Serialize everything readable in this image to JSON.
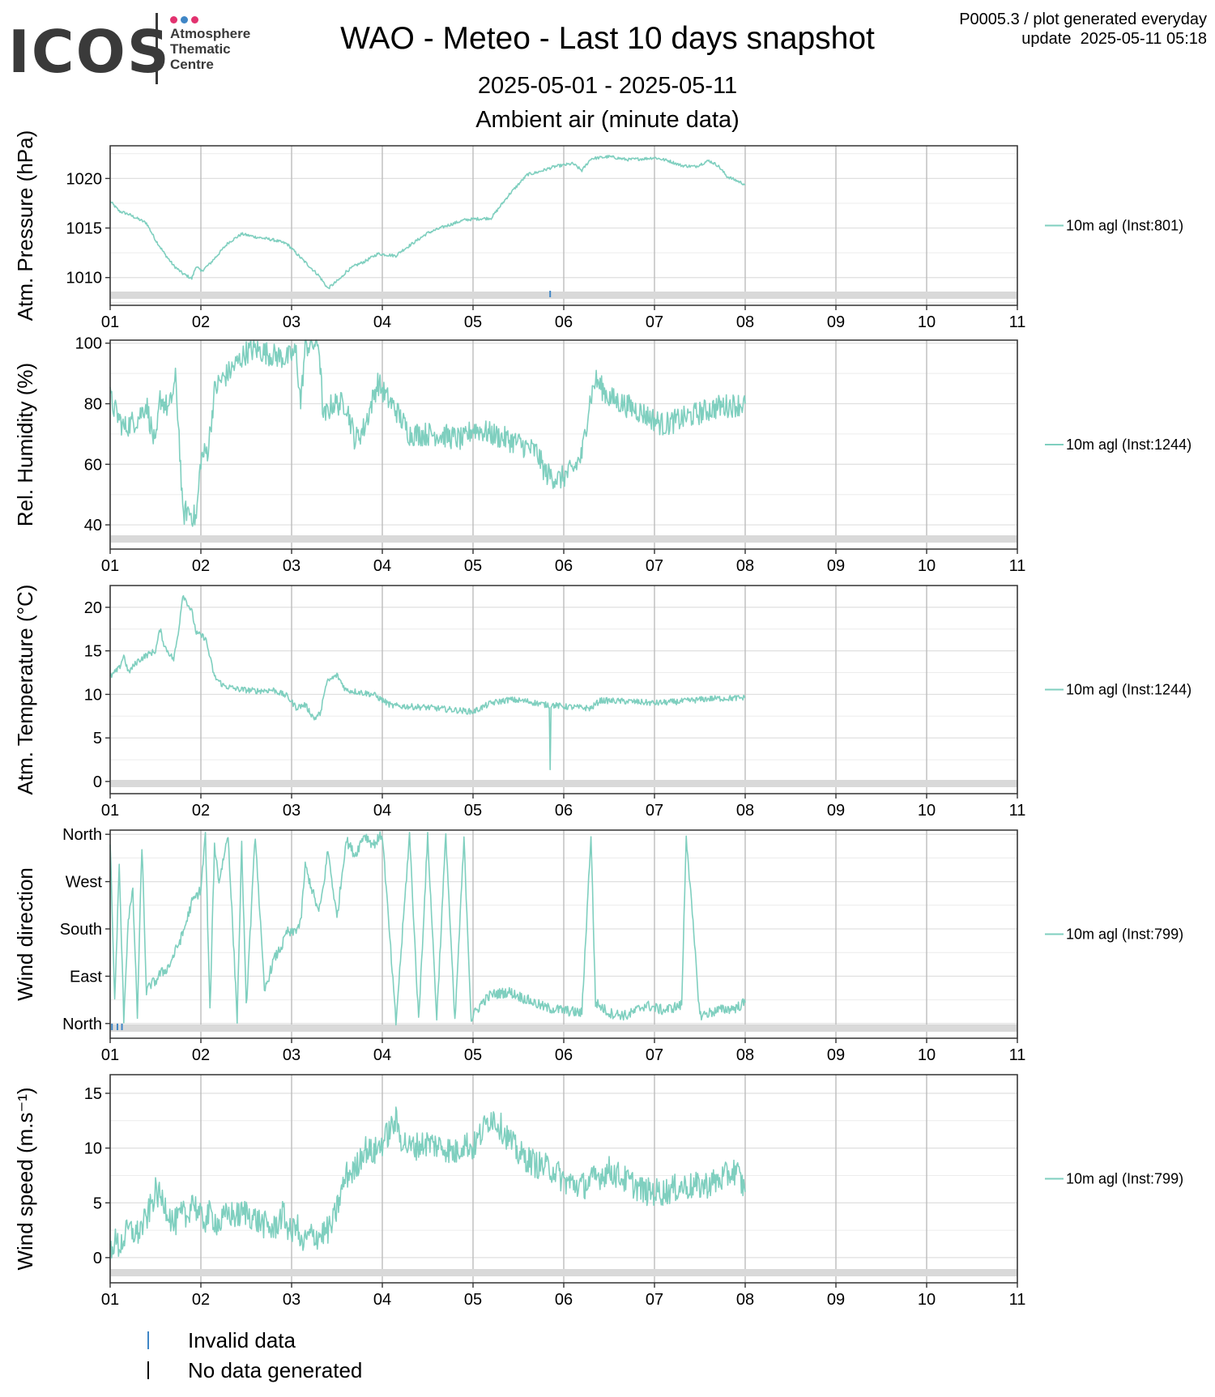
{
  "logo": {
    "text": "ICOS",
    "subtitle": "Atmosphere\nThematic\nCentre",
    "dot_colors": [
      "#e2326f",
      "#3f86c6",
      "#e2326f"
    ]
  },
  "header": {
    "title": "WAO - Meteo - Last 10 days snapshot",
    "subtitle": "2025-05-01 - 2025-05-11",
    "subtitle2": "Ambient air (minute data)",
    "meta_line1": "P0005.3 / plot generated everyday",
    "meta_line2": "update  2025-05-11 05:18"
  },
  "colors": {
    "series": "#7fcfbf",
    "grid_major": "#bdbdbd",
    "grid_minor": "#ececec",
    "nodata_band": "#d9d9d9",
    "invalid": "#3f86c6",
    "nodata": "#000000"
  },
  "legend_bottom": [
    {
      "label": "Invalid data",
      "color": "#3f86c6"
    },
    {
      "label": "No data generated",
      "color": "#000000"
    }
  ],
  "chart_data": [
    {
      "type": "line",
      "id": "pressure",
      "ylabel": "Atm. Pressure (hPa)",
      "series_name": "10m agl (Inst:801)",
      "xlim": [
        1,
        11
      ],
      "ylim": [
        1007.2,
        1023.3
      ],
      "yticks": [
        1010,
        1015,
        1020
      ],
      "ytick_labels": [
        "1010",
        "1015",
        "1020"
      ],
      "xticks": [
        1,
        2,
        3,
        4,
        5,
        6,
        7,
        8,
        9,
        10,
        11
      ],
      "xtick_labels": [
        "01",
        "02",
        "03",
        "04",
        "05",
        "06",
        "07",
        "08",
        "09",
        "10",
        "11"
      ],
      "noise": 0.15,
      "x": [
        1.0,
        1.1,
        1.2,
        1.4,
        1.5,
        1.6,
        1.7,
        1.8,
        1.9,
        1.95,
        2.0,
        2.1,
        2.3,
        2.45,
        2.6,
        2.8,
        2.95,
        3.1,
        3.3,
        3.4,
        3.55,
        3.6,
        3.7,
        3.8,
        3.95,
        4.15,
        4.2,
        4.5,
        4.7,
        4.9,
        5.0,
        5.2,
        5.4,
        5.6,
        5.7,
        5.9,
        6.1,
        6.2,
        6.3,
        6.5,
        6.7,
        6.9,
        7.0,
        7.15,
        7.3,
        7.45,
        7.6,
        7.7,
        7.8,
        8.0
      ],
      "y": [
        1017.7,
        1016.7,
        1016.4,
        1015.5,
        1013.8,
        1012.4,
        1011.2,
        1010.4,
        1009.9,
        1011.2,
        1010.6,
        1011.4,
        1013.5,
        1014.4,
        1014.1,
        1013.8,
        1013.4,
        1012.0,
        1010.2,
        1008.9,
        1010.0,
        1010.6,
        1011.2,
        1011.6,
        1012.4,
        1012.2,
        1012.6,
        1014.5,
        1015.2,
        1015.8,
        1015.9,
        1016.0,
        1018.4,
        1020.4,
        1020.6,
        1021.2,
        1021.5,
        1020.8,
        1022.0,
        1022.2,
        1021.9,
        1022.0,
        1022.1,
        1021.8,
        1021.3,
        1021.2,
        1021.8,
        1021.3,
        1020.2,
        1019.4
      ],
      "invalid_marks": [
        5.85
      ]
    },
    {
      "type": "line",
      "id": "humidity",
      "ylabel": "Rel. Humidity (%)",
      "series_name": "10m agl (Inst:1244)",
      "xlim": [
        1,
        11
      ],
      "ylim": [
        32,
        101
      ],
      "yticks": [
        40,
        60,
        80,
        100
      ],
      "ytick_labels": [
        "40",
        "60",
        "80",
        "100"
      ],
      "xticks": [
        1,
        2,
        3,
        4,
        5,
        6,
        7,
        8,
        9,
        10,
        11
      ],
      "xtick_labels": [
        "01",
        "02",
        "03",
        "04",
        "05",
        "06",
        "07",
        "08",
        "09",
        "10",
        "11"
      ],
      "noise": 4,
      "x": [
        1.0,
        1.05,
        1.15,
        1.3,
        1.4,
        1.5,
        1.55,
        1.65,
        1.72,
        1.76,
        1.8,
        1.85,
        1.95,
        2.0,
        2.08,
        2.15,
        2.2,
        2.3,
        2.5,
        2.6,
        2.8,
        2.95,
        3.05,
        3.1,
        3.15,
        3.3,
        3.33,
        3.35,
        3.45,
        3.6,
        3.7,
        3.8,
        3.9,
        3.95,
        4.05,
        4.15,
        4.3,
        4.6,
        4.9,
        5.0,
        5.2,
        5.5,
        5.7,
        5.8,
        5.95,
        6.1,
        6.2,
        6.28,
        6.35,
        6.5,
        6.8,
        7.1,
        7.3,
        7.5,
        7.7,
        8.0
      ],
      "y": [
        82,
        78,
        72,
        75,
        80,
        65,
        82,
        78,
        88,
        70,
        43,
        45,
        42,
        62,
        65,
        84,
        87,
        90,
        97,
        98,
        96,
        95,
        97,
        80,
        99,
        100,
        85,
        75,
        80,
        80,
        68,
        72,
        82,
        87,
        82,
        78,
        70,
        70,
        68,
        72,
        70,
        67,
        64,
        57,
        55,
        58,
        63,
        80,
        88,
        82,
        78,
        73,
        75,
        77,
        79,
        80
      ],
      "invalid_marks": []
    },
    {
      "type": "line",
      "id": "temperature",
      "ylabel": "Atm. Temperature (°C)",
      "series_name": "10m agl (Inst:1244)",
      "xlim": [
        1,
        11
      ],
      "ylim": [
        -1.4,
        22.5
      ],
      "yticks": [
        0,
        5,
        10,
        15,
        20
      ],
      "ytick_labels": [
        "0",
        "5",
        "10",
        "15",
        "20"
      ],
      "xticks": [
        1,
        2,
        3,
        4,
        5,
        6,
        7,
        8,
        9,
        10,
        11
      ],
      "xtick_labels": [
        "01",
        "02",
        "03",
        "04",
        "05",
        "06",
        "07",
        "08",
        "09",
        "10",
        "11"
      ],
      "noise": 0.35,
      "x": [
        1.0,
        1.1,
        1.15,
        1.2,
        1.3,
        1.4,
        1.5,
        1.55,
        1.6,
        1.7,
        1.75,
        1.8,
        1.85,
        1.9,
        1.95,
        2.05,
        2.15,
        2.25,
        2.4,
        2.6,
        2.8,
        2.95,
        3.05,
        3.15,
        3.25,
        3.33,
        3.35,
        3.4,
        3.5,
        3.6,
        3.9,
        4.1,
        4.5,
        4.8,
        5.0,
        5.2,
        5.4,
        5.6,
        5.8,
        5.84,
        5.85,
        5.86,
        6.0,
        6.3,
        6.4,
        6.7,
        7.0,
        7.3,
        7.6,
        8.0
      ],
      "y": [
        12.0,
        13.0,
        14.5,
        12.5,
        13.8,
        14.5,
        15.0,
        17.5,
        15.5,
        14.0,
        17.0,
        21.5,
        20.5,
        19.5,
        17.0,
        16.5,
        12.0,
        11.0,
        10.6,
        10.4,
        10.5,
        9.8,
        8.5,
        8.8,
        7.2,
        8.0,
        10.0,
        11.5,
        12.2,
        10.5,
        10.0,
        8.7,
        8.5,
        8.2,
        8.0,
        9.0,
        9.4,
        9.2,
        8.8,
        8.8,
        1.6,
        8.8,
        8.6,
        8.4,
        9.3,
        9.2,
        9.0,
        9.2,
        9.5,
        9.6
      ],
      "invalid_marks": []
    },
    {
      "type": "line",
      "id": "wind-direction",
      "ylabel": "Wind direction",
      "series_name": "10m agl (Inst:799)",
      "xlim": [
        1,
        11
      ],
      "ylim": [
        -28,
        368
      ],
      "yticks": [
        0,
        90,
        180,
        270,
        360
      ],
      "ytick_labels": [
        "North",
        "East",
        "South",
        "West",
        "North"
      ],
      "xticks": [
        1,
        2,
        3,
        4,
        5,
        6,
        7,
        8,
        9,
        10,
        11
      ],
      "xtick_labels": [
        "01",
        "02",
        "03",
        "04",
        "05",
        "06",
        "07",
        "08",
        "09",
        "10",
        "11"
      ],
      "noise": 10,
      "x": [
        1.0,
        1.05,
        1.1,
        1.15,
        1.2,
        1.25,
        1.3,
        1.35,
        1.4,
        1.45,
        1.5,
        1.55,
        1.6,
        1.65,
        1.7,
        1.75,
        1.8,
        1.85,
        1.9,
        2.0,
        2.05,
        2.1,
        2.15,
        2.2,
        2.3,
        2.4,
        2.45,
        2.5,
        2.6,
        2.7,
        2.8,
        2.9,
        2.95,
        3.0,
        3.1,
        3.15,
        3.25,
        3.3,
        3.35,
        3.4,
        3.5,
        3.6,
        3.7,
        3.8,
        3.9,
        4.0,
        4.15,
        4.3,
        4.4,
        4.5,
        4.6,
        4.7,
        4.8,
        4.9,
        4.98,
        5.0,
        5.1,
        5.2,
        5.4,
        5.6,
        5.8,
        6.0,
        6.2,
        6.3,
        6.35,
        6.5,
        6.7,
        6.9,
        7.1,
        7.3,
        7.35,
        7.5,
        7.7,
        7.9,
        8.0
      ],
      "y": [
        350,
        40,
        300,
        10,
        200,
        250,
        15,
        340,
        60,
        75,
        80,
        95,
        100,
        110,
        130,
        150,
        170,
        200,
        230,
        255,
        360,
        20,
        340,
        270,
        360,
        10,
        340,
        30,
        360,
        60,
        120,
        150,
        175,
        170,
        190,
        300,
        240,
        210,
        260,
        330,
        200,
        350,
        320,
        360,
        340,
        360,
        0,
        360,
        5,
        355,
        10,
        360,
        0,
        350,
        5,
        15,
        40,
        55,
        60,
        45,
        30,
        25,
        20,
        360,
        40,
        20,
        15,
        35,
        25,
        35,
        360,
        15,
        25,
        30,
        40
      ],
      "invalid_marks": [
        1.02,
        1.08,
        1.13
      ]
    },
    {
      "type": "line",
      "id": "wind-speed",
      "ylabel": "Wind speed (m.s⁻¹)",
      "series_name": "10m agl (Inst:799)",
      "xlim": [
        1,
        11
      ],
      "ylim": [
        -2.3,
        16.7
      ],
      "yticks": [
        0,
        5,
        10,
        15
      ],
      "ytick_labels": [
        "0",
        "5",
        "10",
        "15"
      ],
      "xticks": [
        1,
        2,
        3,
        4,
        5,
        6,
        7,
        8,
        9,
        10,
        11
      ],
      "xtick_labels": [
        "01",
        "02",
        "03",
        "04",
        "05",
        "06",
        "07",
        "08",
        "09",
        "10",
        "11"
      ],
      "noise": 1.3,
      "x": [
        1.0,
        1.05,
        1.1,
        1.2,
        1.3,
        1.4,
        1.5,
        1.6,
        1.7,
        1.8,
        1.85,
        1.9,
        2.0,
        2.05,
        2.1,
        2.2,
        2.3,
        2.4,
        2.5,
        2.6,
        2.8,
        2.9,
        3.0,
        3.05,
        3.1,
        3.2,
        3.3,
        3.4,
        3.45,
        3.55,
        3.6,
        3.7,
        3.8,
        3.9,
        4.0,
        4.15,
        4.2,
        4.3,
        4.5,
        4.7,
        4.8,
        4.9,
        5.0,
        5.1,
        5.2,
        5.3,
        5.5,
        5.7,
        5.9,
        6.0,
        6.2,
        6.3,
        6.5,
        6.7,
        6.9,
        7.1,
        7.3,
        7.5,
        7.7,
        7.9,
        8.0
      ],
      "y": [
        0.8,
        1.5,
        1.0,
        2.5,
        2.2,
        3.5,
        6.0,
        5.0,
        3.0,
        4.0,
        3.5,
        5.5,
        3.5,
        3.5,
        4.0,
        3.0,
        4.0,
        3.8,
        4.2,
        3.5,
        2.5,
        4.0,
        2.0,
        3.5,
        1.0,
        2.0,
        2.0,
        2.5,
        3.0,
        6.0,
        7.5,
        8.0,
        10.0,
        9.5,
        10.5,
        12.5,
        11.0,
        10.0,
        10.5,
        10.0,
        9.5,
        10.5,
        10.0,
        11.5,
        13.0,
        12.0,
        9.5,
        8.5,
        8.0,
        7.0,
        6.5,
        7.0,
        8.0,
        7.0,
        6.0,
        6.0,
        6.5,
        6.5,
        7.0,
        8.0,
        6.0
      ],
      "invalid_marks": []
    }
  ]
}
